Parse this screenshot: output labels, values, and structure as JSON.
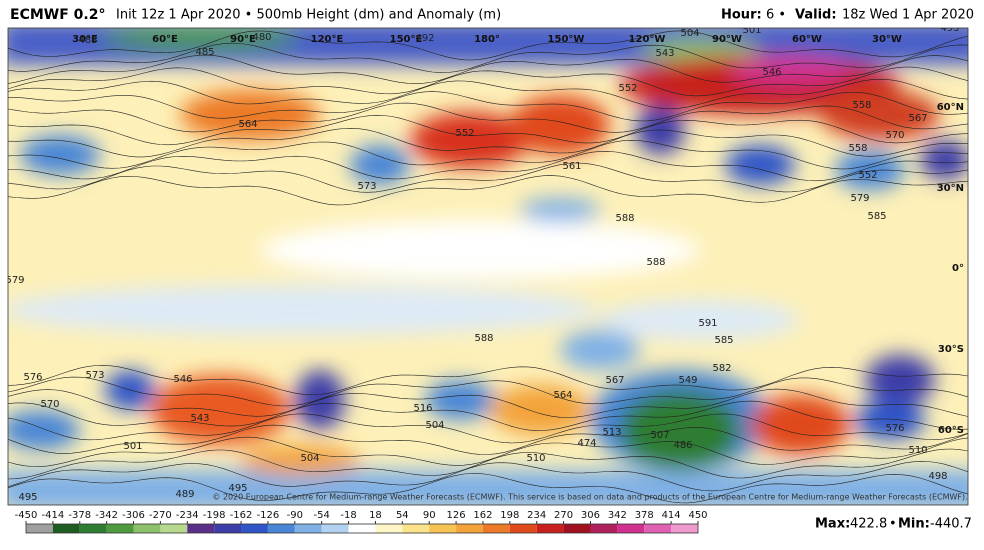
{
  "header": {
    "title": "ECMWF 0.2°",
    "subtitle": "Init 12z 1 Apr 2020 • 500mb Height (dm) and Anomaly (m)",
    "hour_label": "Hour:",
    "hour_value": "6 •",
    "valid_label": "Valid:",
    "valid_value": "18z Wed 1 Apr 2020"
  },
  "map": {
    "lon_labels": [
      "30°E",
      "60°E",
      "90°E",
      "120°E",
      "150°E",
      "180°",
      "150°W",
      "120°W",
      "90°W",
      "60°W",
      "30°W"
    ],
    "lat_labels": [
      "60°N",
      "30°N",
      "0°",
      "30°S",
      "60°S"
    ],
    "contour_labels": [
      483,
      485,
      480,
      492,
      504,
      501,
      495,
      564,
      552,
      543,
      552,
      546,
      558,
      567,
      570,
      558,
      552,
      579,
      585,
      588,
      588,
      579,
      588,
      591,
      585,
      582,
      576,
      573,
      546,
      543,
      570,
      567,
      564,
      549,
      516,
      504,
      510,
      474,
      486,
      507,
      513,
      504,
      501,
      495,
      489,
      495,
      498,
      510,
      576,
      573,
      561
    ],
    "copyright": "© 2020 European Centre for Medium-range Weather Forecasts (ECMWF). This service is based on data and products of the European Centre for Medium-range Weather Forecasts (ECMWF)."
  },
  "colorbar": {
    "ticks": [
      -450,
      -414,
      -378,
      -342,
      -306,
      -270,
      -234,
      -198,
      -162,
      -126,
      -90,
      -54,
      -18,
      18,
      54,
      90,
      126,
      162,
      198,
      234,
      270,
      306,
      342,
      378,
      414,
      450
    ],
    "colors": [
      "#a0a0a0",
      "#1f5c1f",
      "#2e7d32",
      "#4f9a3f",
      "#8cc06a",
      "#b6d98e",
      "#5a2f8a",
      "#3d3da8",
      "#2f55c8",
      "#4a86d6",
      "#7fb0e6",
      "#b3d1f0",
      "#ffffff",
      "#fff6c8",
      "#fbe38a",
      "#f7c454",
      "#f3a33a",
      "#ec7a28",
      "#e04a1a",
      "#c8201e",
      "#a0101e",
      "#b0205a",
      "#d0308e",
      "#e060b4",
      "#f09ad0"
    ]
  },
  "stats": {
    "max_label": "Max:",
    "max": 422.8,
    "separator": "•",
    "min_label": "Min:",
    "min": -440.7
  }
}
